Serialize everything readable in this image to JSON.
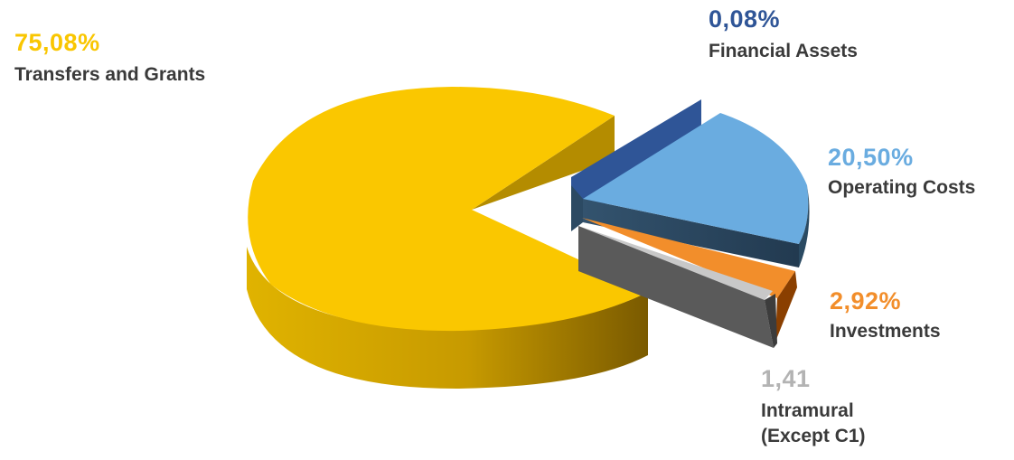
{
  "chart_data": {
    "type": "pie",
    "title": "",
    "slices": [
      {
        "label": "Transfers and Grants",
        "value_label": "75,08%",
        "value": 75.08,
        "color": "#f9c600"
      },
      {
        "label": "Financial Assets",
        "value_label": "0,08%",
        "value": 0.08,
        "color": "#2f5597"
      },
      {
        "label": "Operating Costs",
        "value_label": "20,50%",
        "value": 20.5,
        "color": "#6aace0"
      },
      {
        "label": "Investments",
        "value_label": "2,92%",
        "value": 2.92,
        "color": "#f28e2b"
      },
      {
        "label": "Intramural\n(Except C1)",
        "label_lines": [
          "Intramural",
          "(Except C1)"
        ],
        "value_label": "1,41",
        "value": 1.41,
        "color": "#b3b3b3"
      }
    ],
    "label_colors": {
      "transfers": "#f9c600",
      "financial": "#2f5597",
      "operating": "#6aace0",
      "investments": "#f28e2b",
      "intramural": "#b3b3b3"
    },
    "style": "3d-exploded-pie"
  }
}
